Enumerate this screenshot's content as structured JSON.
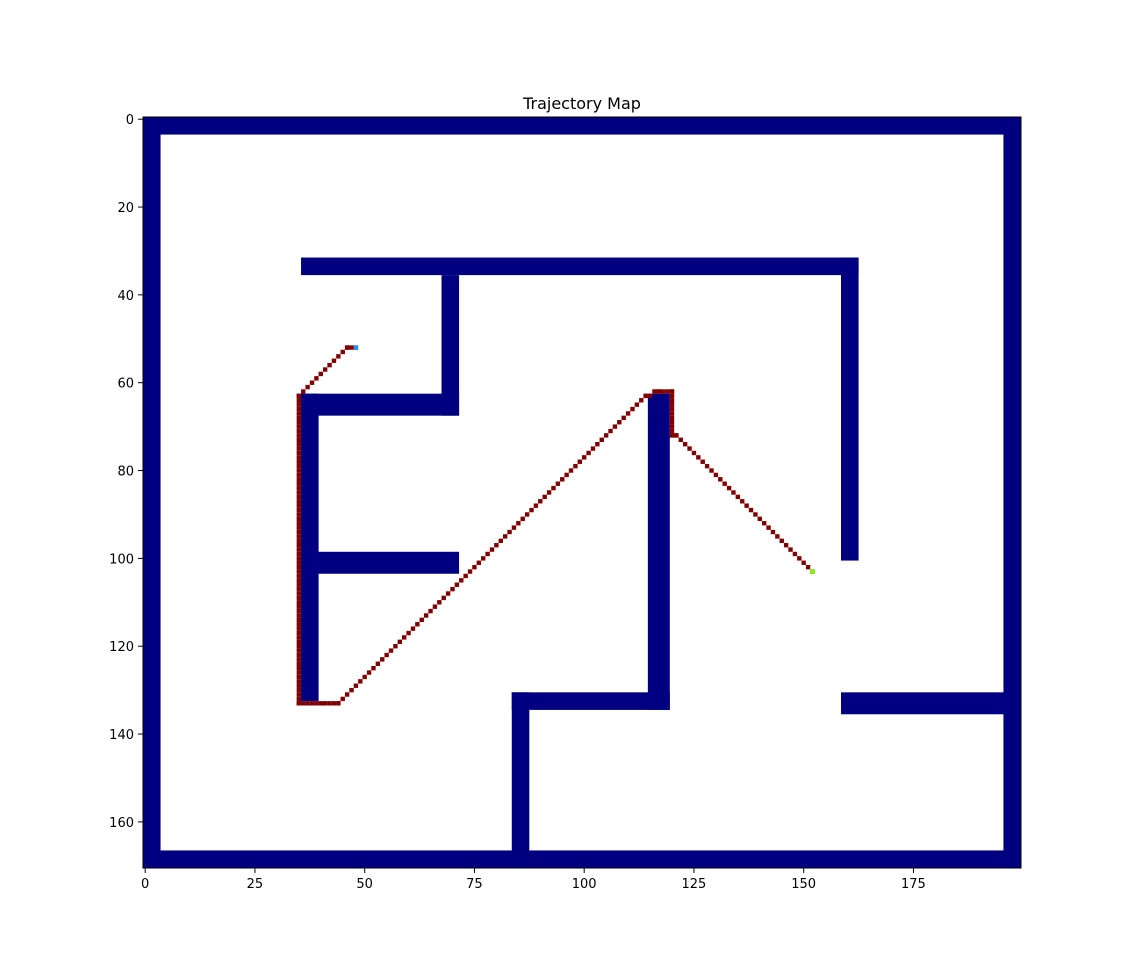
{
  "chart_data": {
    "type": "heatmap",
    "title": "Trajectory Map",
    "xlabel": "",
    "ylabel": "",
    "xlim": [
      0,
      200
    ],
    "ylim": [
      171,
      0
    ],
    "grid": false,
    "xticks": [
      0,
      25,
      50,
      75,
      100,
      125,
      150,
      175
    ],
    "yticks": [
      0,
      20,
      40,
      60,
      80,
      100,
      120,
      140,
      160
    ],
    "colors": {
      "wall": "#000080",
      "free": "#ffffff",
      "trajectory": "#800000",
      "start": "#1e90ff",
      "goal": "#7cfc00"
    },
    "walls": [
      {
        "x0": 0,
        "x1": 200,
        "y0": 0,
        "y1": 4
      },
      {
        "x0": 0,
        "x1": 200,
        "y0": 167,
        "y1": 171
      },
      {
        "x0": 0,
        "x1": 4,
        "y0": 0,
        "y1": 171
      },
      {
        "x0": 196,
        "x1": 200,
        "y0": 0,
        "y1": 171
      },
      {
        "x0": 36,
        "x1": 163,
        "y0": 32,
        "y1": 36
      },
      {
        "x0": 159,
        "x1": 163,
        "y0": 32,
        "y1": 101
      },
      {
        "x0": 68,
        "x1": 72,
        "y0": 36,
        "y1": 68
      },
      {
        "x0": 36,
        "x1": 72,
        "y0": 63,
        "y1": 68
      },
      {
        "x0": 36,
        "x1": 40,
        "y0": 63,
        "y1": 133
      },
      {
        "x0": 36,
        "x1": 72,
        "y0": 99,
        "y1": 104
      },
      {
        "x0": 115,
        "x1": 120,
        "y0": 63,
        "y1": 135
      },
      {
        "x0": 84,
        "x1": 120,
        "y0": 131,
        "y1": 135
      },
      {
        "x0": 84,
        "x1": 88,
        "y0": 131,
        "y1": 171
      },
      {
        "x0": 159,
        "x1": 200,
        "y0": 131,
        "y1": 136
      }
    ],
    "trajectory": [
      [
        48,
        52
      ],
      [
        46,
        52
      ],
      [
        35,
        63
      ],
      [
        35,
        133
      ],
      [
        44,
        133
      ],
      [
        114,
        63
      ],
      [
        117,
        62
      ],
      [
        120,
        62
      ],
      [
        120,
        72
      ],
      [
        121,
        72
      ],
      [
        152,
        103
      ]
    ],
    "start": [
      48,
      52
    ],
    "goal": [
      152,
      103
    ]
  }
}
